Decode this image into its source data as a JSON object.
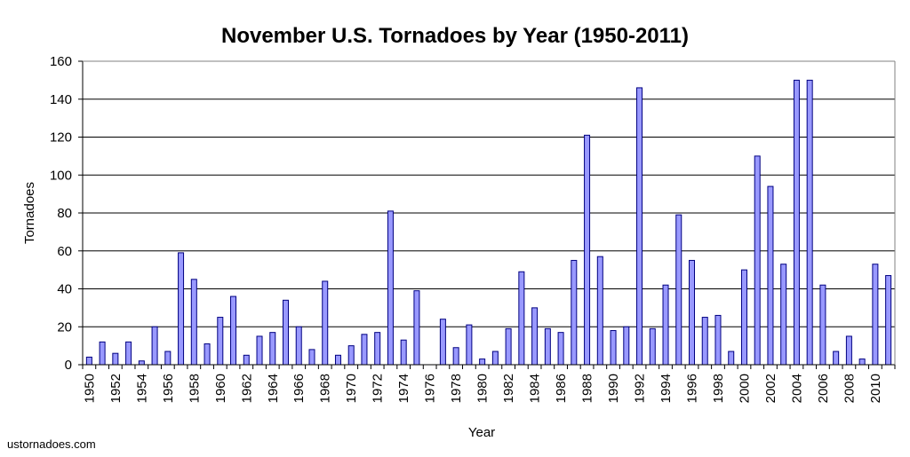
{
  "chart_data": {
    "type": "bar",
    "title": "November U.S. Tornadoes by Year (1950-2011)",
    "xlabel": "Year",
    "ylabel": "Tornadoes",
    "ylim": [
      0,
      160
    ],
    "yticks": [
      0,
      20,
      40,
      60,
      80,
      100,
      120,
      140,
      160
    ],
    "grid": true,
    "legend": "none",
    "categories": [
      "1950",
      "1951",
      "1952",
      "1953",
      "1954",
      "1955",
      "1956",
      "1957",
      "1958",
      "1959",
      "1960",
      "1961",
      "1962",
      "1963",
      "1964",
      "1965",
      "1966",
      "1967",
      "1968",
      "1969",
      "1970",
      "1971",
      "1972",
      "1973",
      "1974",
      "1975",
      "1976",
      "1977",
      "1978",
      "1979",
      "1980",
      "1981",
      "1982",
      "1983",
      "1984",
      "1985",
      "1986",
      "1987",
      "1988",
      "1989",
      "1990",
      "1991",
      "1992",
      "1993",
      "1994",
      "1995",
      "1996",
      "1997",
      "1998",
      "1999",
      "2000",
      "2001",
      "2002",
      "2003",
      "2004",
      "2005",
      "2006",
      "2007",
      "2008",
      "2009",
      "2010",
      "2011"
    ],
    "xtick_labels": [
      "1950",
      "1952",
      "1954",
      "1956",
      "1958",
      "1960",
      "1962",
      "1964",
      "1966",
      "1968",
      "1970",
      "1972",
      "1974",
      "1976",
      "1978",
      "1980",
      "1982",
      "1984",
      "1986",
      "1988",
      "1990",
      "1992",
      "1994",
      "1996",
      "1998",
      "2000",
      "2002",
      "2004",
      "2006",
      "2008",
      "2010"
    ],
    "values": [
      4,
      12,
      6,
      12,
      2,
      20,
      7,
      59,
      45,
      11,
      25,
      36,
      5,
      15,
      17,
      34,
      20,
      8,
      44,
      5,
      10,
      16,
      17,
      81,
      13,
      39,
      0,
      24,
      9,
      21,
      3,
      7,
      19,
      49,
      30,
      19,
      17,
      55,
      121,
      57,
      18,
      20,
      146,
      19,
      42,
      79,
      55,
      25,
      26,
      7,
      50,
      110,
      94,
      53,
      150,
      150,
      42,
      7,
      15,
      3,
      53,
      47
    ],
    "source": "ustornadoes.com"
  },
  "colors": {
    "bar_fill": "#9999ff",
    "bar_stroke": "#000080",
    "grid": "#000000",
    "background": "#ffffff"
  }
}
